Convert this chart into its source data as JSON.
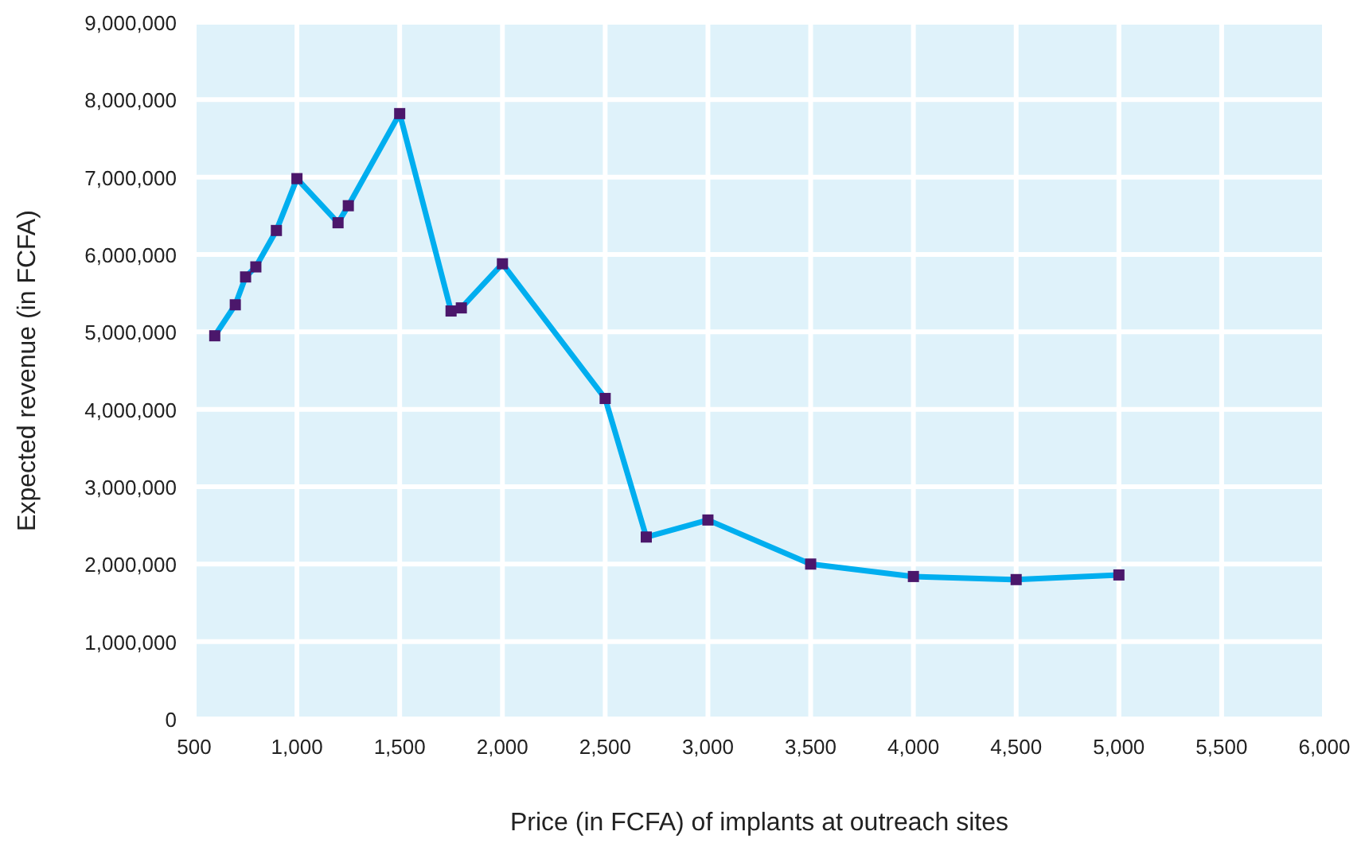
{
  "chart_data": {
    "type": "line",
    "xlabel": "Price (in FCFA) of implants at outreach sites",
    "ylabel": "Expected revenue (in FCFA)",
    "x": [
      600,
      700,
      750,
      800,
      900,
      1000,
      1200,
      1250,
      1500,
      1750,
      1800,
      2000,
      2500,
      2700,
      3000,
      3500,
      4000,
      4500,
      5000
    ],
    "series": [
      {
        "color": "#00aeef",
        "values": [
          4950000,
          5350000,
          5710000,
          5840000,
          6310000,
          6980000,
          6410000,
          6630000,
          7820000,
          5270000,
          5310000,
          5880000,
          4140000,
          2350000,
          2570000,
          2000000,
          1840000,
          1800000,
          1860000
        ]
      }
    ],
    "marker": "square",
    "grid": true,
    "xlim": [
      500,
      6000
    ],
    "xticks": [
      {
        "value": 500,
        "label": "500"
      },
      {
        "value": 1000,
        "label": "1,000"
      },
      {
        "value": 1500,
        "label": "1,500"
      },
      {
        "value": 2000,
        "label": "2,000"
      },
      {
        "value": 2500,
        "label": "2,500"
      },
      {
        "value": 3000,
        "label": "3,000"
      },
      {
        "value": 3500,
        "label": "3,500"
      },
      {
        "value": 4000,
        "label": "4,000"
      },
      {
        "value": 4500,
        "label": "4,500"
      },
      {
        "value": 5000,
        "label": "5,000"
      },
      {
        "value": 5500,
        "label": "5,500"
      },
      {
        "value": 6000,
        "label": "6,000"
      }
    ],
    "ylim": [
      0,
      9000000
    ],
    "yticks": [
      0,
      {
        "value": 1000000,
        "label": "1,000,000"
      },
      {
        "value": 2000000,
        "label": "2,000,000"
      },
      {
        "value": 3000000,
        "label": "3,000,000"
      },
      {
        "value": 4000000,
        "label": "4,000,000"
      },
      {
        "value": 5000000,
        "label": "5,000,000"
      },
      {
        "value": 6000000,
        "label": "6,000,000"
      },
      {
        "value": 7000000,
        "label": "7,000,000"
      },
      {
        "value": 8000000,
        "label": "8,000,000"
      },
      {
        "value": 9000000,
        "label": "9,000,000"
      }
    ]
  }
}
